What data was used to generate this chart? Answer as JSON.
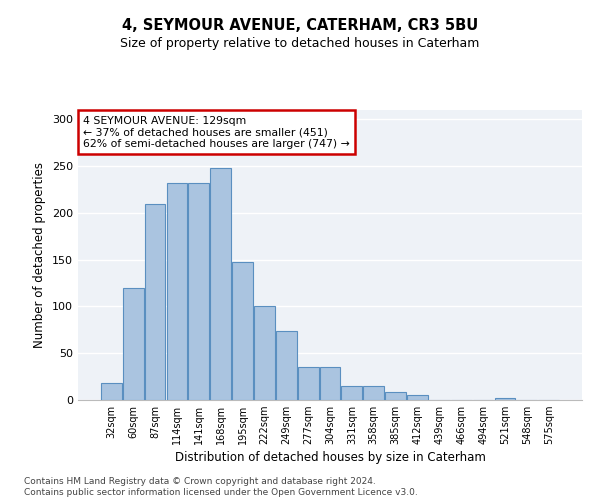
{
  "title1": "4, SEYMOUR AVENUE, CATERHAM, CR3 5BU",
  "title2": "Size of property relative to detached houses in Caterham",
  "xlabel": "Distribution of detached houses by size in Caterham",
  "ylabel": "Number of detached properties",
  "bin_labels": [
    "32sqm",
    "60sqm",
    "87sqm",
    "114sqm",
    "141sqm",
    "168sqm",
    "195sqm",
    "222sqm",
    "249sqm",
    "277sqm",
    "304sqm",
    "331sqm",
    "358sqm",
    "385sqm",
    "412sqm",
    "439sqm",
    "466sqm",
    "494sqm",
    "521sqm",
    "548sqm",
    "575sqm"
  ],
  "bar_values": [
    18,
    120,
    209,
    232,
    232,
    248,
    147,
    101,
    74,
    35,
    35,
    15,
    15,
    9,
    5,
    0,
    0,
    0,
    2,
    0,
    0
  ],
  "bar_color": "#aac4e0",
  "bar_edge_color": "#5a8fc0",
  "background_color": "#eef2f7",
  "annotation_text": "4 SEYMOUR AVENUE: 129sqm\n← 37% of detached houses are smaller (451)\n62% of semi-detached houses are larger (747) →",
  "annotation_box_color": "#ffffff",
  "annotation_box_edge_color": "#cc0000",
  "footer_line1": "Contains HM Land Registry data © Crown copyright and database right 2024.",
  "footer_line2": "Contains public sector information licensed under the Open Government Licence v3.0.",
  "ylim": [
    0,
    310
  ],
  "yticks": [
    0,
    50,
    100,
    150,
    200,
    250,
    300
  ]
}
